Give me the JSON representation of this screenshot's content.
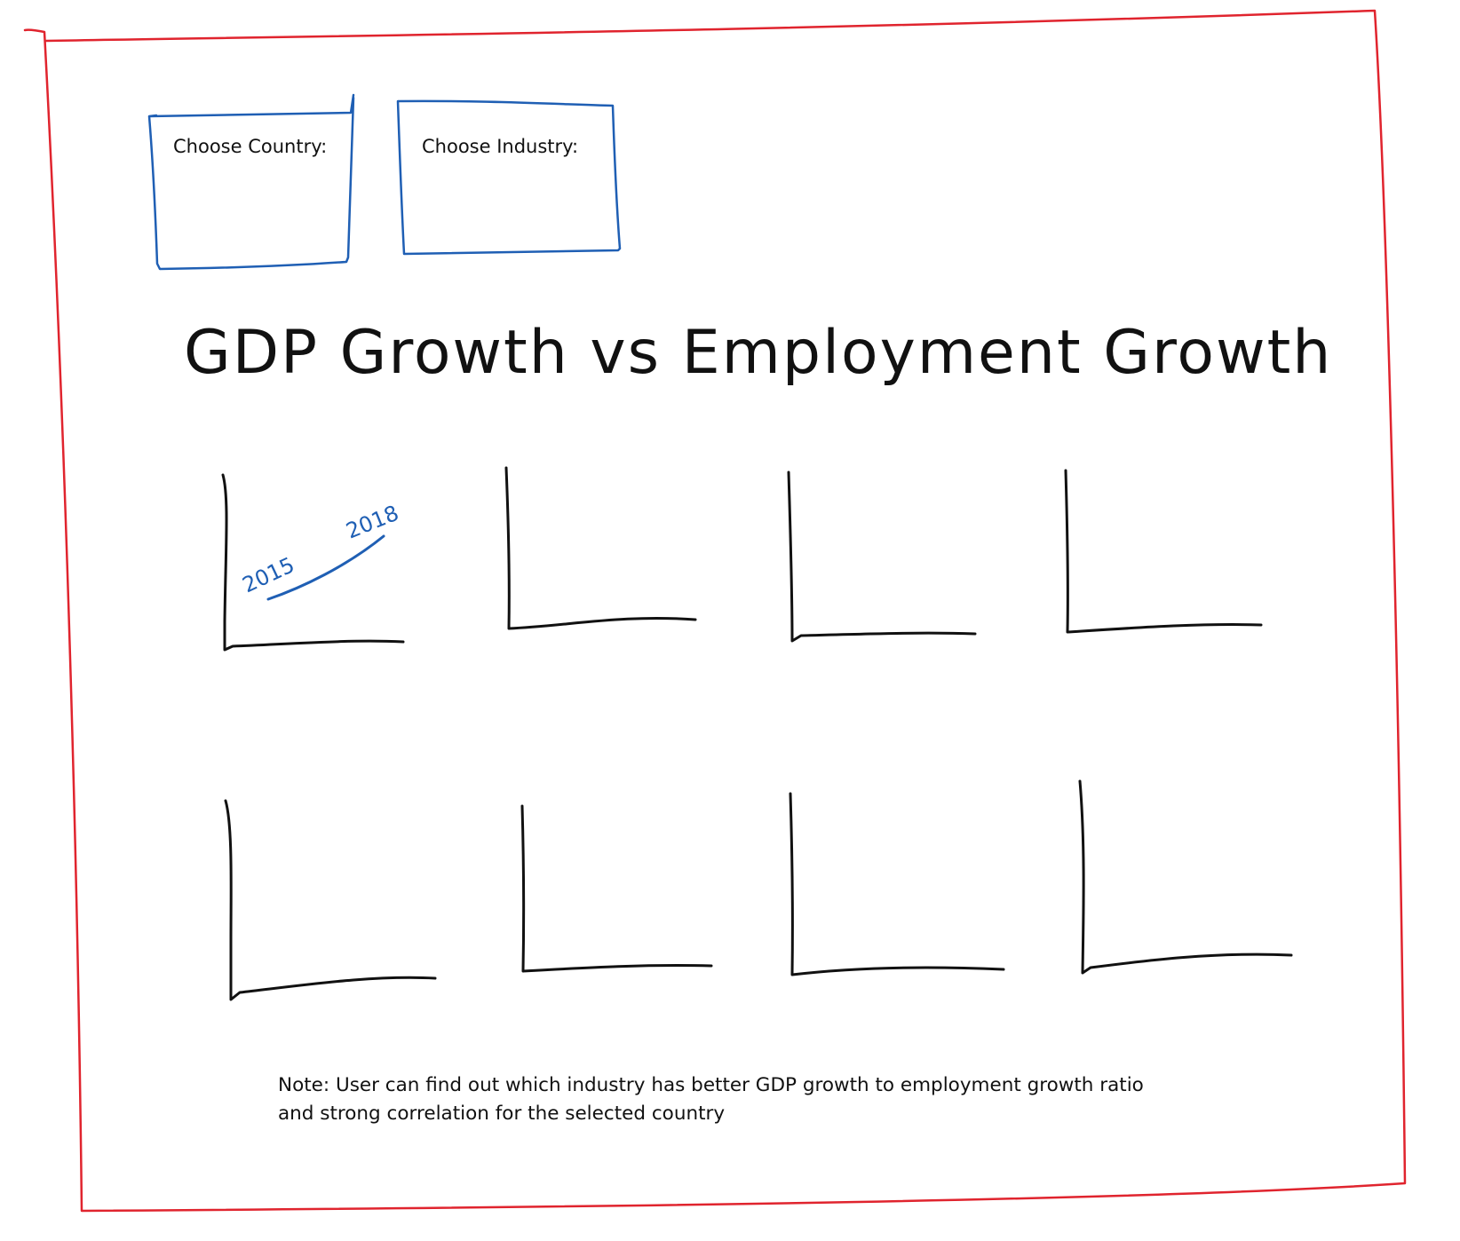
{
  "filters": {
    "country_label": "Choose Country:",
    "industry_label": "Choose Industry:"
  },
  "chart_title": "GDP Growth vs Employment Growth",
  "sample_chart": {
    "start_year": "2015",
    "end_year": "2018"
  },
  "note": {
    "line1": "Note: User can find out which industry has better GDP growth to employment growth ratio",
    "line2": "and strong correlation for the selected country"
  },
  "colors": {
    "frame": "#e0242e",
    "filter_box": "#1f5fb4",
    "ink": "#111111",
    "annotation": "#1f5fb4"
  }
}
